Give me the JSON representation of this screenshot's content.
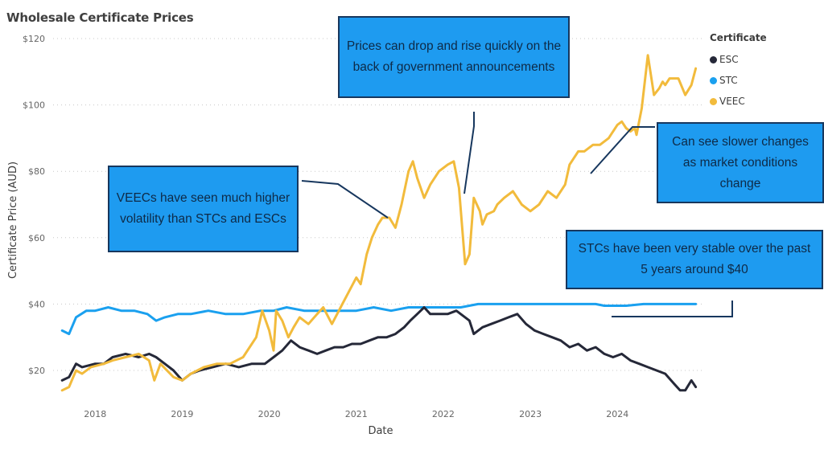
{
  "chart_data": {
    "type": "line",
    "title": "Wholesale Certificate Prices",
    "xlabel": "Date",
    "ylabel": "Certificate Price (AUD)",
    "ylim": [
      10,
      120
    ],
    "xlim": [
      2017.6,
      2024.95
    ],
    "y_ticks": [
      20,
      40,
      60,
      80,
      100,
      120
    ],
    "y_tick_labels": [
      "$20",
      "$40",
      "$60",
      "$80",
      "$100",
      "$120"
    ],
    "x_ticks": [
      2018,
      2019,
      2020,
      2021,
      2022,
      2023,
      2024
    ],
    "x_tick_labels": [
      "2018",
      "2019",
      "2020",
      "2021",
      "2022",
      "2023",
      "2024"
    ],
    "grid": "horizontal-dotted",
    "legend": {
      "title": "Certificate",
      "position": "top-right"
    },
    "series": [
      {
        "name": "ESC",
        "color": "#252838",
        "x": [
          2017.62,
          2017.7,
          2017.78,
          2017.85,
          2018.0,
          2018.1,
          2018.2,
          2018.35,
          2018.5,
          2018.62,
          2018.7,
          2018.8,
          2018.9,
          2019.0,
          2019.1,
          2019.2,
          2019.35,
          2019.5,
          2019.65,
          2019.8,
          2019.95,
          2020.05,
          2020.15,
          2020.25,
          2020.35,
          2020.45,
          2020.55,
          2020.65,
          2020.75,
          2020.85,
          2020.95,
          2021.05,
          2021.15,
          2021.25,
          2021.35,
          2021.45,
          2021.55,
          2021.62,
          2021.7,
          2021.78,
          2021.85,
          2021.95,
          2022.05,
          2022.15,
          2022.25,
          2022.3,
          2022.35,
          2022.45,
          2022.55,
          2022.65,
          2022.75,
          2022.85,
          2022.95,
          2023.05,
          2023.15,
          2023.25,
          2023.35,
          2023.45,
          2023.55,
          2023.65,
          2023.75,
          2023.85,
          2023.95,
          2024.05,
          2024.15,
          2024.25,
          2024.35,
          2024.45,
          2024.55,
          2024.65,
          2024.72,
          2024.78,
          2024.85,
          2024.9
        ],
        "values": [
          17,
          18,
          22,
          21,
          22,
          22,
          24,
          25,
          24,
          25,
          24,
          22,
          20,
          17,
          19,
          20,
          21,
          22,
          21,
          22,
          22,
          24,
          26,
          29,
          27,
          26,
          25,
          26,
          27,
          27,
          28,
          28,
          29,
          30,
          30,
          31,
          33,
          35,
          37,
          39,
          37,
          37,
          37,
          38,
          36,
          35,
          31,
          33,
          34,
          35,
          36,
          37,
          34,
          32,
          31,
          30,
          29,
          27,
          28,
          26,
          27,
          25,
          24,
          25,
          23,
          22,
          21,
          20,
          19,
          16,
          14,
          14,
          17,
          15
        ]
      },
      {
        "name": "STC",
        "color": "#1aa0ef",
        "x": [
          2017.62,
          2017.7,
          2017.78,
          2017.9,
          2018.0,
          2018.15,
          2018.3,
          2018.45,
          2018.6,
          2018.7,
          2018.8,
          2018.95,
          2019.1,
          2019.3,
          2019.5,
          2019.7,
          2019.9,
          2020.05,
          2020.2,
          2020.4,
          2020.6,
          2020.8,
          2021.0,
          2021.2,
          2021.4,
          2021.6,
          2021.8,
          2022.0,
          2022.2,
          2022.4,
          2022.6,
          2022.8,
          2023.0,
          2023.2,
          2023.4,
          2023.6,
          2023.75,
          2023.85,
          2023.95,
          2024.1,
          2024.3,
          2024.5,
          2024.7,
          2024.9
        ],
        "values": [
          32,
          31,
          36,
          38,
          38,
          39,
          38,
          38,
          37,
          35,
          36,
          37,
          37,
          38,
          37,
          37,
          38,
          38,
          39,
          38,
          38,
          38,
          38,
          39,
          38,
          39,
          39,
          39,
          39,
          40,
          40,
          40,
          40,
          40,
          40,
          40,
          40,
          39.5,
          39.5,
          39.5,
          40,
          40,
          40,
          40
        ]
      },
      {
        "name": "VEEC",
        "color": "#f2bb3c",
        "x": [
          2017.62,
          2017.7,
          2017.78,
          2017.85,
          2017.95,
          2018.1,
          2018.2,
          2018.35,
          2018.5,
          2018.62,
          2018.68,
          2018.75,
          2018.9,
          2019.0,
          2019.1,
          2019.25,
          2019.4,
          2019.55,
          2019.7,
          2019.85,
          2019.92,
          2020.0,
          2020.05,
          2020.08,
          2020.15,
          2020.22,
          2020.28,
          2020.35,
          2020.45,
          2020.55,
          2020.62,
          2020.72,
          2020.82,
          2020.92,
          2021.0,
          2021.05,
          2021.12,
          2021.18,
          2021.25,
          2021.3,
          2021.38,
          2021.45,
          2021.52,
          2021.6,
          2021.65,
          2021.7,
          2021.78,
          2021.85,
          2021.95,
          2022.05,
          2022.12,
          2022.18,
          2022.22,
          2022.25,
          2022.3,
          2022.35,
          2022.42,
          2022.45,
          2022.5,
          2022.58,
          2022.62,
          2022.7,
          2022.8,
          2022.9,
          2023.0,
          2023.1,
          2023.2,
          2023.3,
          2023.4,
          2023.45,
          2023.55,
          2023.62,
          2023.72,
          2023.8,
          2023.9,
          2024.0,
          2024.05,
          2024.1,
          2024.15,
          2024.2,
          2024.22,
          2024.28,
          2024.35,
          2024.42,
          2024.48,
          2024.52,
          2024.55,
          2024.6,
          2024.7,
          2024.78,
          2024.85,
          2024.9
        ],
        "values": [
          14,
          15,
          20,
          19,
          21,
          22,
          23,
          24,
          25,
          23,
          17,
          22,
          18,
          17,
          19,
          21,
          22,
          22,
          24,
          30,
          38,
          32,
          26,
          38,
          35,
          30,
          33,
          36,
          34,
          37,
          39,
          34,
          39,
          44,
          48,
          46,
          55,
          60,
          64,
          66,
          66,
          63,
          70,
          80,
          83,
          78,
          72,
          76,
          80,
          82,
          83,
          75,
          62,
          52,
          55,
          72,
          68,
          64,
          67,
          68,
          70,
          72,
          74,
          70,
          68,
          70,
          74,
          72,
          76,
          82,
          86,
          86,
          88,
          88,
          90,
          94,
          95,
          93,
          92,
          93,
          91,
          99,
          115,
          103,
          105,
          107,
          106,
          108,
          108,
          103,
          106,
          111
        ]
      }
    ]
  },
  "annotations": [
    {
      "id": "c1",
      "text": "Prices can drop and rise quickly on the back of government announcements"
    },
    {
      "id": "c2",
      "text": "VEECs have seen much higher volatility than STCs and ESCs"
    },
    {
      "id": "c3",
      "text": "Can see slower changes as market conditions change"
    },
    {
      "id": "c4",
      "text": "STCs have been very stable over the past 5 years around $40"
    }
  ],
  "colors": {
    "callout_fill": "#1e9bf0",
    "callout_border": "#17375e",
    "connector": "#17375e"
  }
}
